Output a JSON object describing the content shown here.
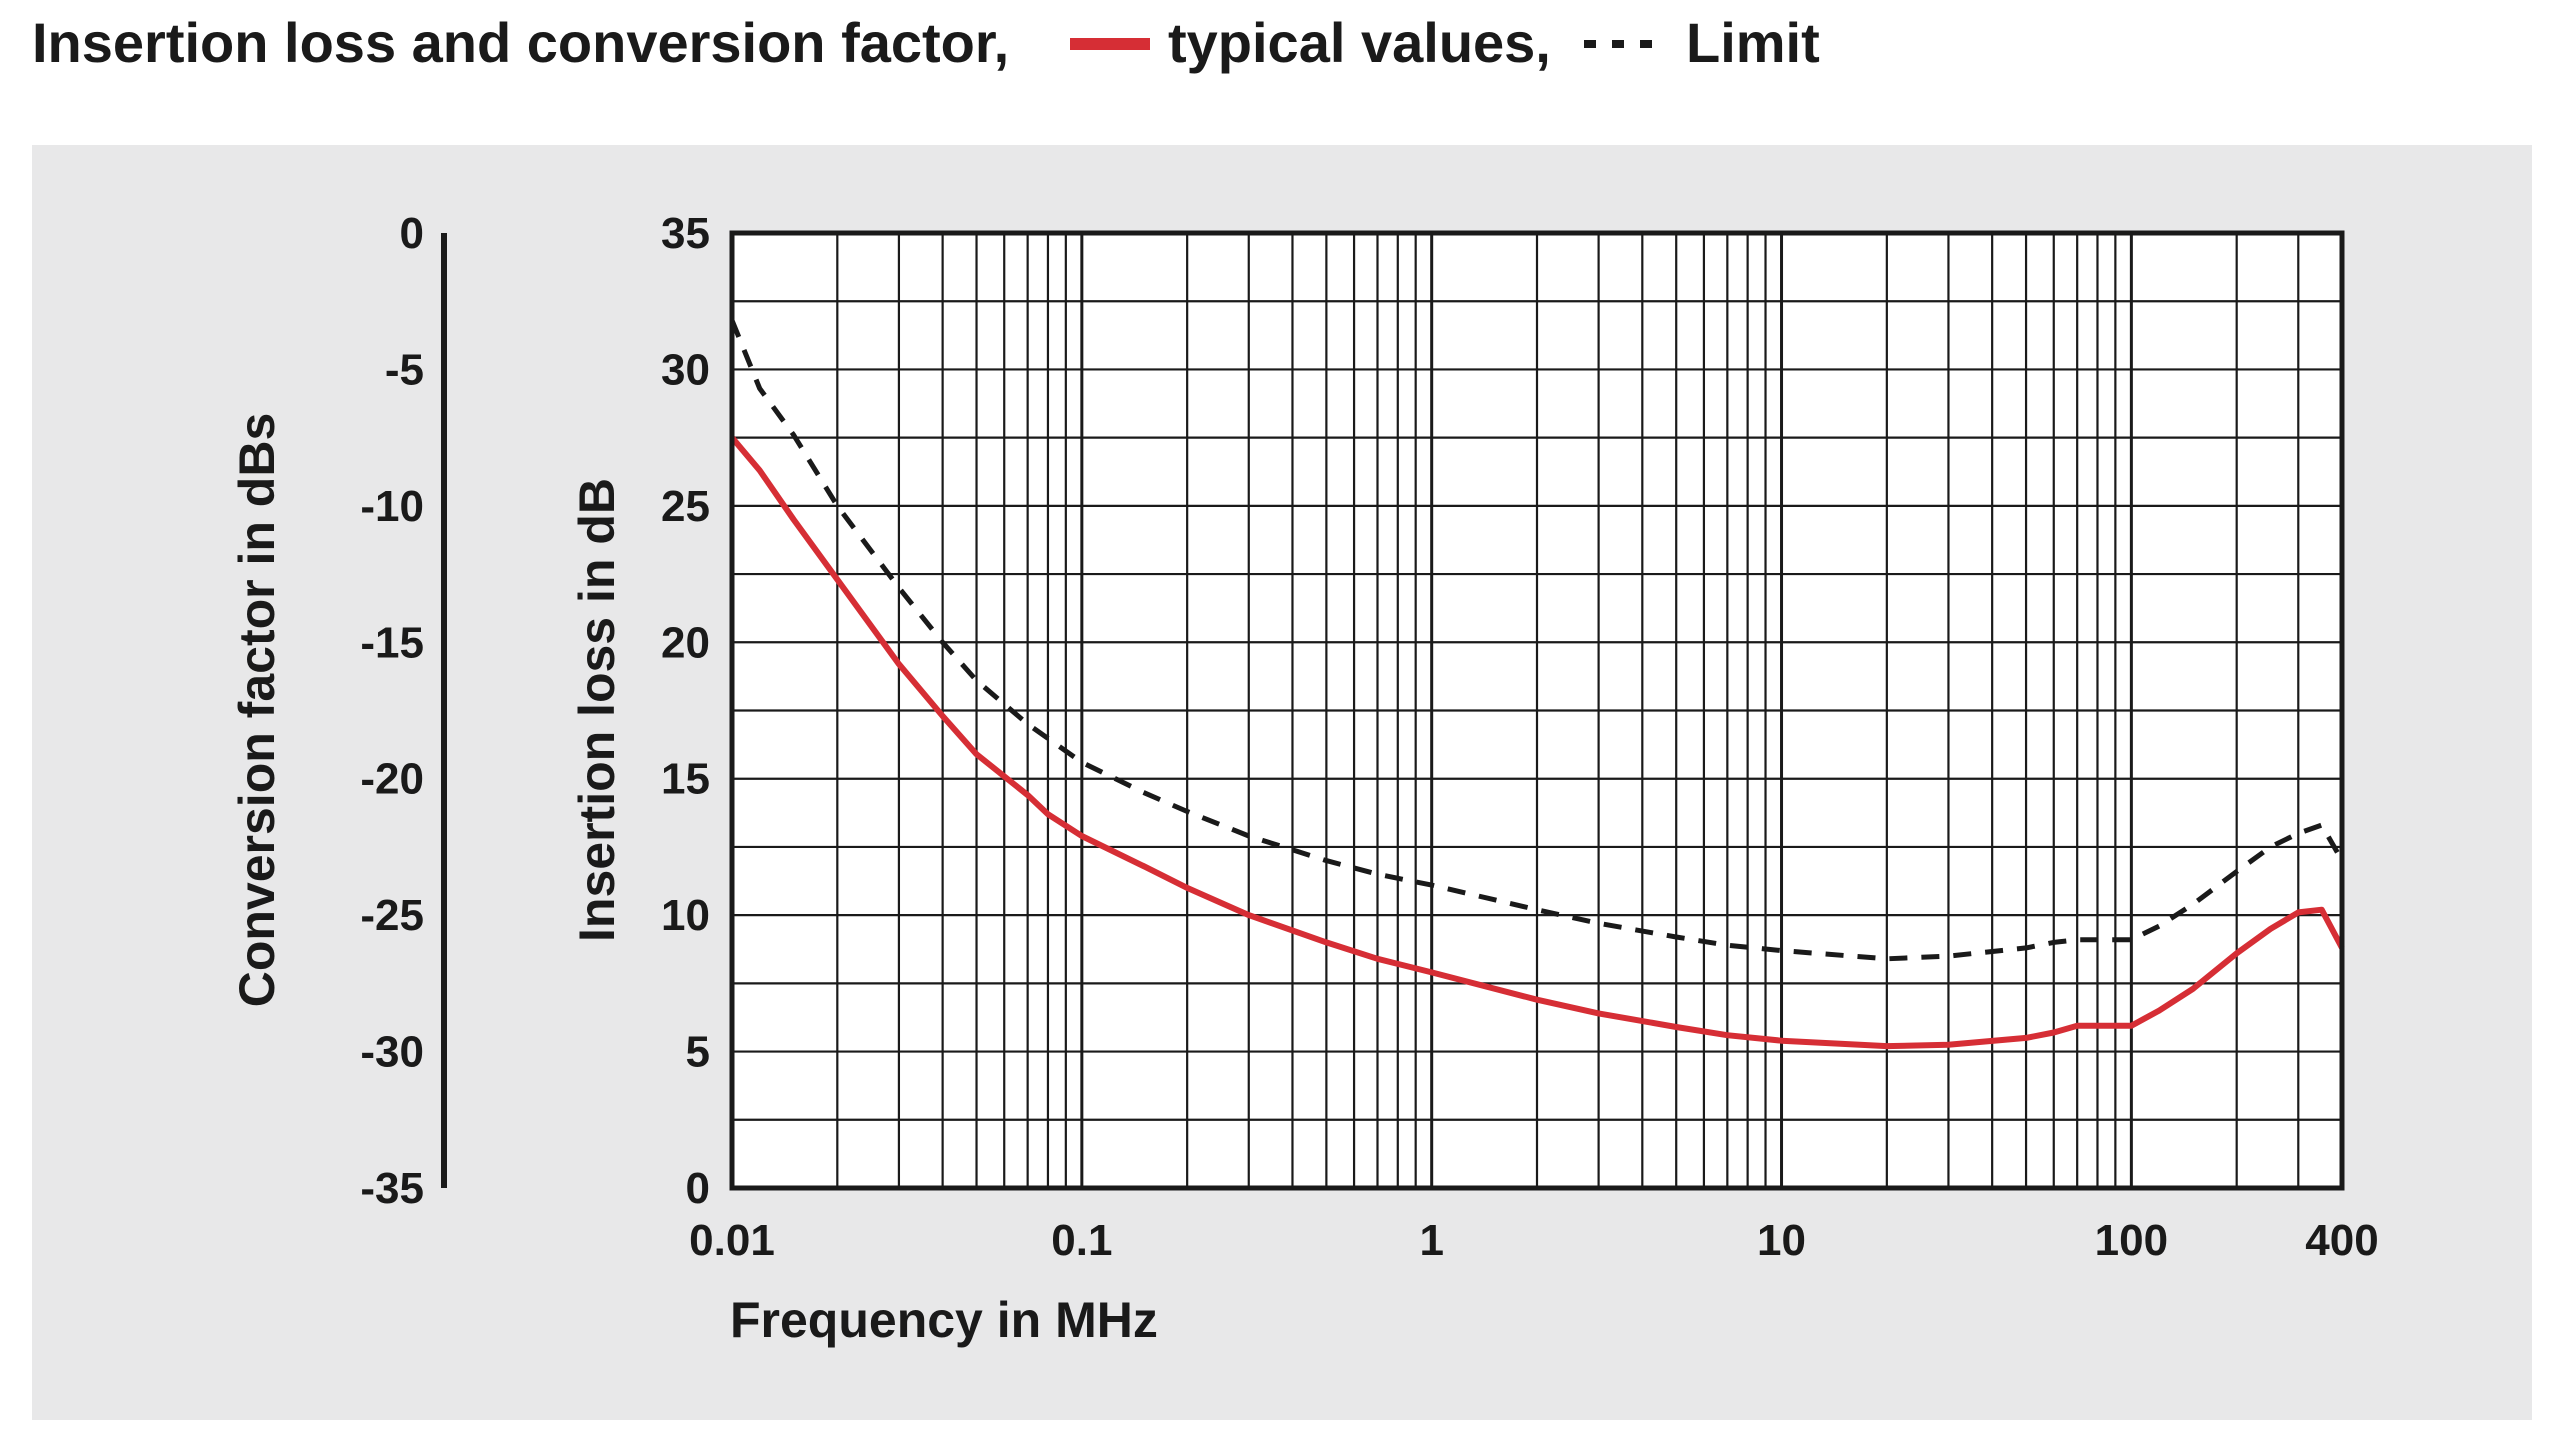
{
  "chart_data": {
    "type": "line",
    "title": {
      "prefix": "Insertion loss and conversion factor,",
      "typical_label": "typical values,",
      "limit_label": "Limit"
    },
    "xlabel": "Frequency in MHz",
    "ylabel": "Insertion loss in dB",
    "y2label": "Conversion factor in dBs",
    "x_scale": "log",
    "xlim": [
      0.01,
      400
    ],
    "ylim": [
      0,
      35
    ],
    "y2lim": [
      -35,
      0
    ],
    "x_ticks": [
      {
        "value": 0.01,
        "label": "0.01"
      },
      {
        "value": 0.1,
        "label": "0.1"
      },
      {
        "value": 1,
        "label": "1"
      },
      {
        "value": 10,
        "label": "10"
      },
      {
        "value": 100,
        "label": "100"
      },
      {
        "value": 400,
        "label": "400"
      }
    ],
    "y_ticks": [
      {
        "value": 0,
        "label": "0"
      },
      {
        "value": 5,
        "label": "5"
      },
      {
        "value": 10,
        "label": "10"
      },
      {
        "value": 15,
        "label": "15"
      },
      {
        "value": 20,
        "label": "20"
      },
      {
        "value": 25,
        "label": "25"
      },
      {
        "value": 30,
        "label": "30"
      },
      {
        "value": 35,
        "label": "35"
      }
    ],
    "y2_ticks": [
      {
        "value": 0,
        "label": "0"
      },
      {
        "value": -5,
        "label": "-5"
      },
      {
        "value": -10,
        "label": "-10"
      },
      {
        "value": -15,
        "label": "-15"
      },
      {
        "value": -20,
        "label": "-20"
      },
      {
        "value": -25,
        "label": "-25"
      },
      {
        "value": -30,
        "label": "-30"
      },
      {
        "value": -35,
        "label": "-35"
      }
    ],
    "grid": true,
    "series": [
      {
        "name": "typical values",
        "color": "#d62e35",
        "dash": "solid",
        "x": [
          0.01,
          0.012,
          0.015,
          0.02,
          0.03,
          0.04,
          0.05,
          0.07,
          0.08,
          0.1,
          0.15,
          0.2,
          0.3,
          0.5,
          0.7,
          1,
          2,
          3,
          5,
          7,
          10,
          20,
          30,
          50,
          60,
          70,
          100,
          120,
          150,
          200,
          250,
          300,
          350,
          400
        ],
        "y": [
          27.5,
          26.3,
          24.5,
          22.3,
          19.2,
          17.3,
          15.9,
          14.4,
          13.7,
          12.9,
          11.8,
          11.0,
          10.0,
          9.0,
          8.4,
          7.9,
          6.9,
          6.4,
          5.9,
          5.6,
          5.4,
          5.2,
          5.25,
          5.5,
          5.7,
          5.95,
          5.95,
          6.5,
          7.3,
          8.6,
          9.5,
          10.1,
          10.2,
          8.8
        ]
      },
      {
        "name": "Limit",
        "color": "#1a1a1a",
        "dash": "dashed",
        "x": [
          0.01,
          0.012,
          0.015,
          0.02,
          0.03,
          0.04,
          0.05,
          0.07,
          0.1,
          0.15,
          0.2,
          0.3,
          0.5,
          0.7,
          1,
          2,
          3,
          5,
          7,
          10,
          20,
          30,
          50,
          60,
          70,
          100,
          120,
          150,
          200,
          250,
          300,
          350,
          400
        ],
        "y": [
          31.8,
          29.3,
          27.6,
          25.0,
          22.0,
          20.0,
          18.6,
          17.0,
          15.6,
          14.5,
          13.8,
          12.9,
          12.0,
          11.5,
          11.1,
          10.2,
          9.7,
          9.2,
          8.9,
          8.7,
          8.4,
          8.5,
          8.8,
          9.0,
          9.1,
          9.1,
          9.6,
          10.4,
          11.6,
          12.5,
          13.0,
          13.3,
          12.0
        ]
      }
    ]
  },
  "colors": {
    "background": "#ffffff",
    "panel": "#e8e8e9",
    "plot_area": "#ffffff",
    "grid": "#1a1a1a",
    "typical": "#d62e35",
    "limit": "#1a1a1a",
    "text": "#1a1a1a"
  }
}
